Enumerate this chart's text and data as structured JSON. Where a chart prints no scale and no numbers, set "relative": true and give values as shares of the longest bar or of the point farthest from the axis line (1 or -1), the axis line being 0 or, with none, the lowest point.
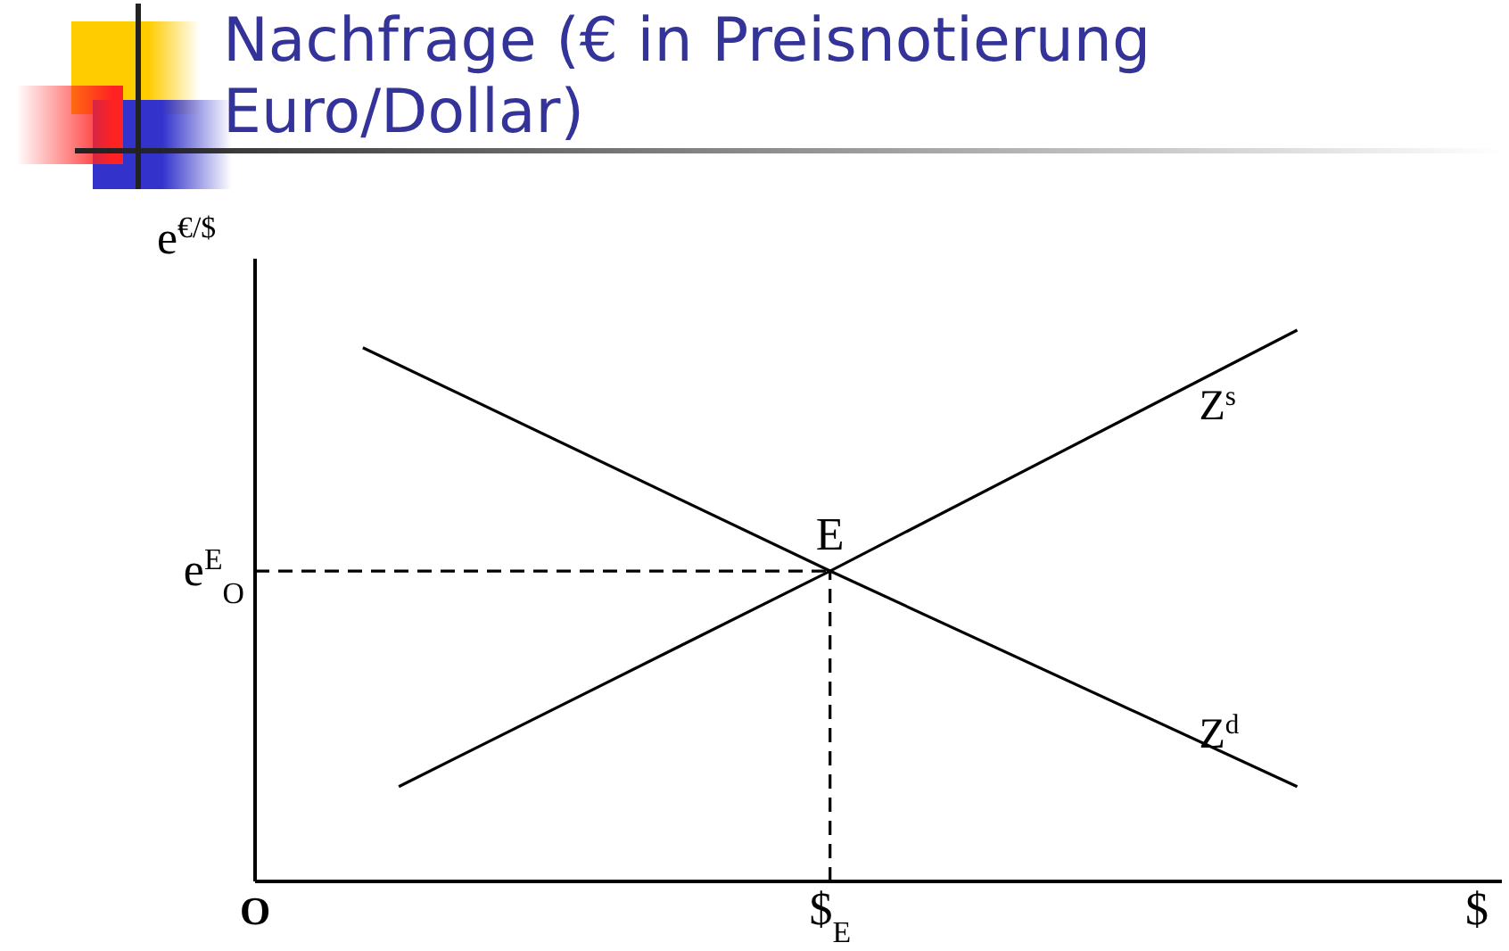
{
  "chart_data": {
    "type": "line",
    "title": "Nachfrage (€ in Preisnotierung Euro/Dollar)",
    "relative": true,
    "ylabel": "e$^{€/$}$",
    "categories": [
      "O",
      null,
      null,
      null,
      null,
      null,
      null,
      null,
      null,
      null,
      null,
      null,
      null,
      null,
      null,
      null,
      "$$_{E}$",
      null,
      null,
      null,
      null,
      null,
      null,
      null,
      null,
      null,
      null,
      null,
      null,
      null,
      null,
      null,
      null,
      null,
      "$"
    ],
    "series": [
      {
        "name": "Z$^{s}$",
        "color": "#000000",
        "values": [
          null,
          null,
          null,
          null,
          0.172,
          null,
          null,
          null,
          null,
          null,
          null,
          null,
          null,
          null,
          null,
          null,
          0.563,
          null,
          null,
          null,
          null,
          null,
          null,
          null,
          null,
          null,
          null,
          null,
          null,
          1,
          null,
          null,
          null,
          null,
          null
        ]
      },
      {
        "name": "Z$^{d}$",
        "color": "#000000",
        "values": [
          null,
          null,
          null,
          0.968,
          null,
          null,
          null,
          null,
          null,
          null,
          null,
          null,
          null,
          null,
          null,
          null,
          0.563,
          null,
          null,
          null,
          null,
          null,
          null,
          null,
          null,
          null,
          null,
          null,
          null,
          0.172,
          null,
          null,
          null,
          null,
          null
        ]
      }
    ],
    "ref_lines": [
      {
        "axis": "y",
        "value": 0.563,
        "label": "e$^{E}$$_{O}$",
        "line_style": "dashed"
      },
      {
        "axis": "x",
        "value": "$$_{E}$",
        "line_style": "dashed"
      }
    ],
    "annotations": [
      {
        "text": "E",
        "x": "$$_{E}$",
        "y": 0.563
      }
    ],
    "grid": false,
    "legend": false,
    "marker": "none",
    "line_style": "solid"
  }
}
